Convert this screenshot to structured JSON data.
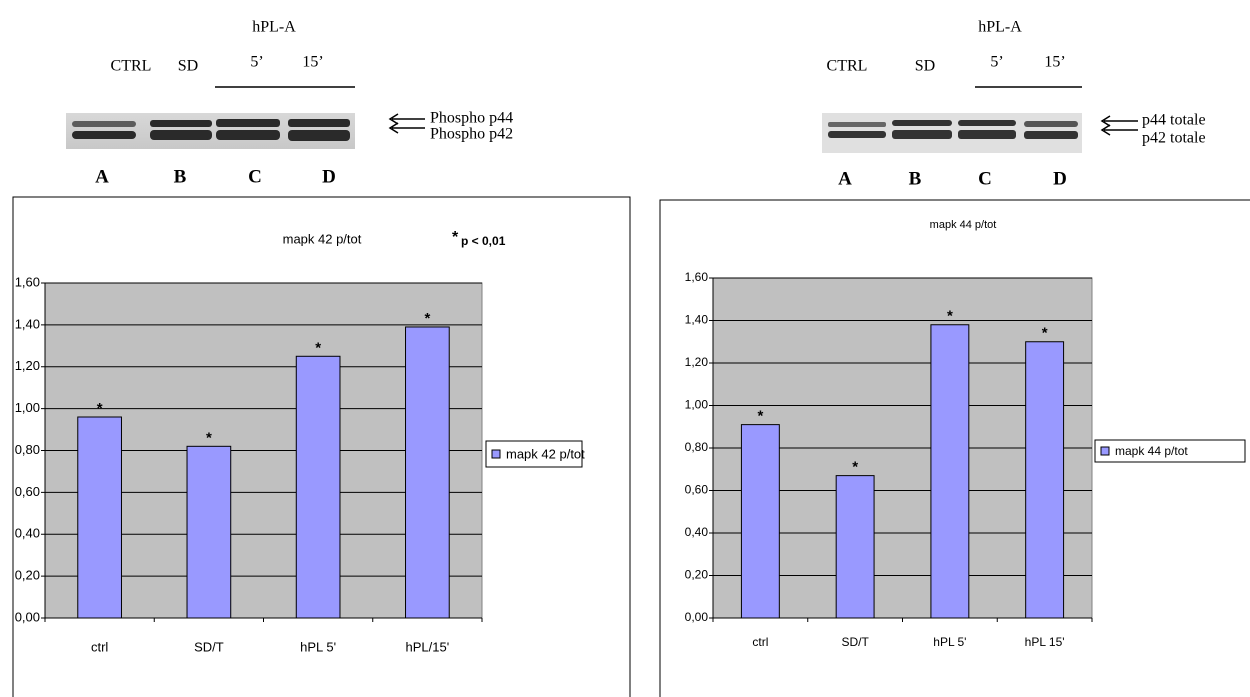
{
  "chart_data": [
    {
      "type": "bar",
      "title": "mapk 42 p/tot",
      "note_marker": "*",
      "note": "p < 0,01",
      "categories": [
        "ctrl",
        "SD/T",
        "hPL 5'",
        "hPL/15'"
      ],
      "series": [
        {
          "name": "mapk 42 p/tot",
          "color": "#9999ff",
          "values": [
            0.96,
            0.82,
            1.25,
            1.39
          ]
        }
      ],
      "bar_annotations": [
        "*",
        "*",
        "*",
        "*"
      ],
      "ylim": [
        0,
        1.6
      ],
      "yticks": [
        {
          "value": 0,
          "label": "0,00"
        },
        {
          "value": 0.2,
          "label": "0,20"
        },
        {
          "value": 0.4,
          "label": "0,40"
        },
        {
          "value": 0.6,
          "label": "0,60"
        },
        {
          "value": 0.8,
          "label": "0,80"
        },
        {
          "value": 1.0,
          "label": "1,00"
        },
        {
          "value": 1.2,
          "label": "1,20"
        },
        {
          "value": 1.4,
          "label": "1,40"
        },
        {
          "value": 1.6,
          "label": "1,60"
        }
      ],
      "grid": true,
      "legend": "right"
    },
    {
      "type": "bar",
      "title": "mapk 44 p/tot",
      "categories": [
        "ctrl",
        "SD/T",
        "hPL 5'",
        "hPL 15'"
      ],
      "series": [
        {
          "name": "mapk 44 p/tot",
          "color": "#9999ff",
          "values": [
            0.91,
            0.67,
            1.38,
            1.3
          ]
        }
      ],
      "bar_annotations": [
        "*",
        "*",
        "*",
        "*"
      ],
      "ylim": [
        0,
        1.6
      ],
      "yticks": [
        {
          "value": 0,
          "label": "0,00"
        },
        {
          "value": 0.2,
          "label": "0,20"
        },
        {
          "value": 0.4,
          "label": "0,40"
        },
        {
          "value": 0.6,
          "label": "0,60"
        },
        {
          "value": 0.8,
          "label": "0,80"
        },
        {
          "value": 1.0,
          "label": "1,00"
        },
        {
          "value": 1.2,
          "label": "1,20"
        },
        {
          "value": 1.4,
          "label": "1,40"
        },
        {
          "value": 1.6,
          "label": "1,60"
        }
      ],
      "grid": true,
      "legend": "right"
    }
  ],
  "blots": [
    {
      "group_label": "hPL-A",
      "lane_labels": [
        "CTRL",
        "SD",
        "5’",
        "15’"
      ],
      "band_labels": [
        "Phospho  p44",
        "Phospho  p42"
      ],
      "lane_letters": [
        "A",
        "B",
        "C",
        "D"
      ]
    },
    {
      "group_label": "hPL-A",
      "lane_labels": [
        "CTRL",
        "SD",
        "5’",
        "15’"
      ],
      "band_labels": [
        "p44 totale",
        "p42 totale"
      ],
      "lane_letters": [
        "A",
        "B",
        "C",
        "D"
      ]
    }
  ]
}
